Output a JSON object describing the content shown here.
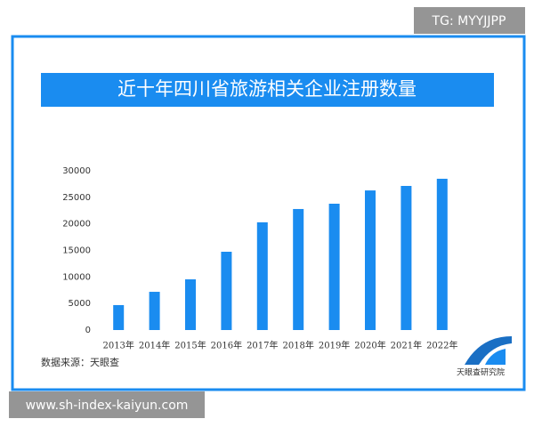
{
  "chart_data": {
    "type": "bar",
    "title": "近十年四川省旅游相关企业注册数量",
    "categories": [
      "2013年",
      "2014年",
      "2015年",
      "2016年",
      "2017年",
      "2018年",
      "2019年",
      "2020年",
      "2021年",
      "2022年"
    ],
    "values": [
      4700,
      7200,
      9550,
      14750,
      20300,
      22800,
      23800,
      26300,
      27150,
      28500
    ],
    "color": "#1a8cf0",
    "ylim": [
      0,
      30000
    ],
    "yticks": [
      0,
      5000,
      10000,
      15000,
      20000,
      25000,
      30000
    ],
    "grid": false,
    "source": "数据来源：天眼查",
    "logo": "天眼查研究院",
    "watermark": "TG: MYYJJPP",
    "url": "www.sh-index-kaiyun.com"
  }
}
